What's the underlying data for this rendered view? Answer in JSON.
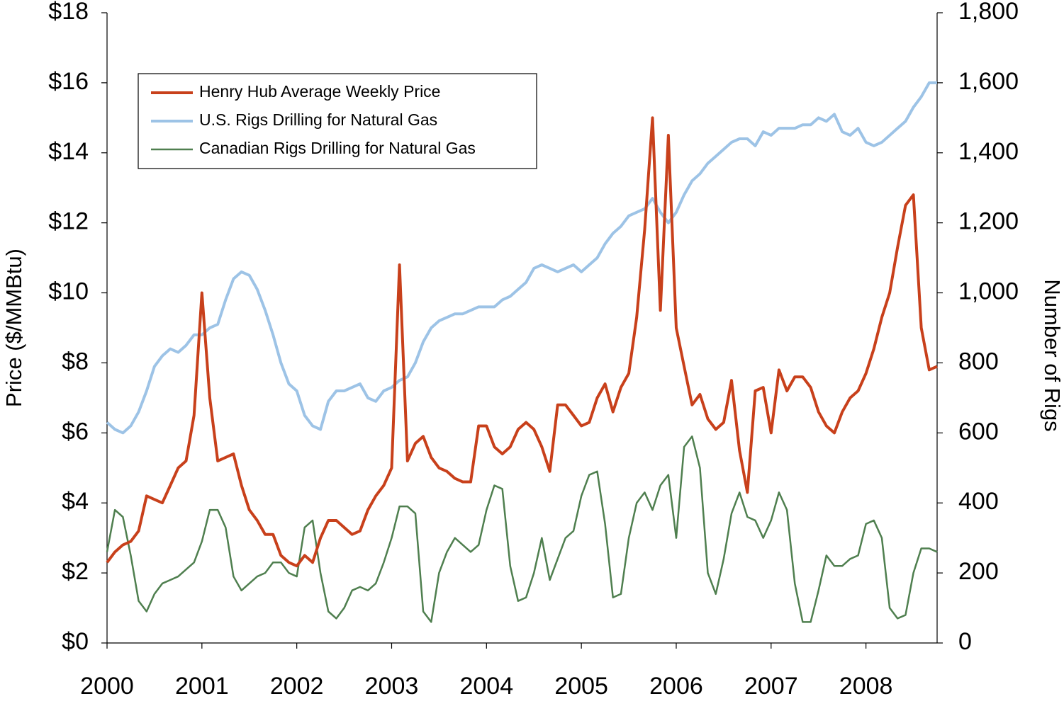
{
  "chart_data": {
    "type": "line",
    "y_label": "Price ($/MMBtu)",
    "y2_label": "Number of Rigs",
    "xlim": [
      2000,
      2008.75
    ],
    "xticks": [
      2000,
      2001,
      2002,
      2003,
      2004,
      2005,
      2006,
      2007,
      2008
    ],
    "ylim": [
      0,
      18
    ],
    "yticks": [
      {
        "value": 0,
        "label": "$0"
      },
      {
        "value": 2,
        "label": "$2"
      },
      {
        "value": 4,
        "label": "$4"
      },
      {
        "value": 6,
        "label": "$6"
      },
      {
        "value": 8,
        "label": "$8"
      },
      {
        "value": 10,
        "label": "$10"
      },
      {
        "value": 12,
        "label": "$12"
      },
      {
        "value": 14,
        "label": "$14"
      },
      {
        "value": 16,
        "label": "$16"
      },
      {
        "value": 18,
        "label": "$18"
      }
    ],
    "y2lim": [
      0,
      1800
    ],
    "y2ticks": [
      0,
      200,
      400,
      600,
      800,
      {
        "value": 1000,
        "label": "1,000"
      },
      {
        "value": 1200,
        "label": "1,200"
      },
      {
        "value": 1400,
        "label": "1,400"
      },
      {
        "value": 1600,
        "label": "1,600"
      },
      {
        "value": 1800,
        "label": "1,800"
      }
    ],
    "legend": "upper left",
    "x": [
      2000,
      2000.083,
      2000.167,
      2000.25,
      2000.333,
      2000.417,
      2000.5,
      2000.583,
      2000.667,
      2000.75,
      2000.833,
      2000.917,
      2001,
      2001.083,
      2001.167,
      2001.25,
      2001.333,
      2001.417,
      2001.5,
      2001.583,
      2001.667,
      2001.75,
      2001.833,
      2001.917,
      2002,
      2002.083,
      2002.167,
      2002.25,
      2002.333,
      2002.417,
      2002.5,
      2002.583,
      2002.667,
      2002.75,
      2002.833,
      2002.917,
      2003,
      2003.083,
      2003.167,
      2003.25,
      2003.333,
      2003.417,
      2003.5,
      2003.583,
      2003.667,
      2003.75,
      2003.833,
      2003.917,
      2004,
      2004.083,
      2004.167,
      2004.25,
      2004.333,
      2004.417,
      2004.5,
      2004.583,
      2004.667,
      2004.75,
      2004.833,
      2004.917,
      2005,
      2005.083,
      2005.167,
      2005.25,
      2005.333,
      2005.417,
      2005.5,
      2005.583,
      2005.667,
      2005.75,
      2005.833,
      2005.917,
      2006,
      2006.083,
      2006.167,
      2006.25,
      2006.333,
      2006.417,
      2006.5,
      2006.583,
      2006.667,
      2006.75,
      2006.833,
      2006.917,
      2007,
      2007.083,
      2007.167,
      2007.25,
      2007.333,
      2007.417,
      2007.5,
      2007.583,
      2007.667,
      2007.75,
      2007.833,
      2007.917,
      2008,
      2008.083,
      2008.167,
      2008.25,
      2008.333,
      2008.417,
      2008.5,
      2008.583,
      2008.667,
      2008.75
    ],
    "series": [
      {
        "name": "Henry Hub Average Weekly Price",
        "color": "#c8401b",
        "width": 4,
        "axis": "y",
        "values": [
          2.3,
          2.6,
          2.8,
          2.9,
          3.2,
          4.2,
          4.1,
          4.0,
          4.5,
          5.0,
          5.2,
          6.5,
          10.0,
          7.0,
          5.2,
          5.3,
          5.4,
          4.5,
          3.8,
          3.5,
          3.1,
          3.1,
          2.5,
          2.3,
          2.2,
          2.5,
          2.3,
          3.0,
          3.5,
          3.5,
          3.3,
          3.1,
          3.2,
          3.8,
          4.2,
          4.5,
          5.0,
          10.8,
          5.2,
          5.7,
          5.9,
          5.3,
          5.0,
          4.9,
          4.7,
          4.6,
          4.6,
          6.2,
          6.2,
          5.6,
          5.4,
          5.6,
          6.1,
          6.3,
          6.1,
          5.6,
          4.9,
          6.8,
          6.8,
          6.5,
          6.2,
          6.3,
          7.0,
          7.4,
          6.6,
          7.3,
          7.7,
          9.3,
          11.8,
          15.0,
          9.5,
          14.5,
          9.0,
          7.9,
          6.8,
          7.1,
          6.4,
          6.1,
          6.3,
          7.5,
          5.5,
          4.3,
          7.2,
          7.3,
          6.0,
          7.8,
          7.2,
          7.6,
          7.6,
          7.3,
          6.6,
          6.2,
          6.0,
          6.6,
          7.0,
          7.2,
          7.7,
          8.4,
          9.3,
          10.0,
          11.3,
          12.5,
          12.8,
          9.0,
          7.8,
          7.9
        ]
      },
      {
        "name": "U.S. Rigs Drilling for Natural Gas",
        "color": "#9dc3e6",
        "width": 4,
        "axis": "y2",
        "values": [
          630,
          610,
          600,
          620,
          660,
          720,
          790,
          820,
          840,
          830,
          850,
          880,
          880,
          900,
          910,
          980,
          1040,
          1060,
          1050,
          1010,
          950,
          880,
          800,
          740,
          720,
          650,
          620,
          610,
          690,
          720,
          720,
          730,
          740,
          700,
          690,
          720,
          730,
          750,
          760,
          800,
          860,
          900,
          920,
          930,
          940,
          940,
          950,
          960,
          960,
          960,
          980,
          990,
          1010,
          1030,
          1070,
          1080,
          1070,
          1060,
          1070,
          1080,
          1060,
          1080,
          1100,
          1140,
          1170,
          1190,
          1220,
          1230,
          1240,
          1270,
          1230,
          1200,
          1230,
          1280,
          1320,
          1340,
          1370,
          1390,
          1410,
          1430,
          1440,
          1440,
          1420,
          1460,
          1450,
          1470,
          1470,
          1470,
          1480,
          1480,
          1500,
          1490,
          1510,
          1460,
          1450,
          1470,
          1430,
          1420,
          1430,
          1450,
          1470,
          1490,
          1530,
          1560,
          1600,
          1600
        ]
      },
      {
        "name": "Canadian Rigs Drilling for Natural Gas",
        "color": "#4f7f4f",
        "width": 2.5,
        "axis": "y2",
        "values": [
          260,
          380,
          360,
          250,
          120,
          90,
          140,
          170,
          180,
          190,
          210,
          230,
          290,
          380,
          380,
          330,
          190,
          150,
          170,
          190,
          200,
          230,
          230,
          200,
          190,
          330,
          350,
          200,
          90,
          70,
          100,
          150,
          160,
          150,
          170,
          230,
          300,
          390,
          390,
          370,
          90,
          60,
          200,
          260,
          300,
          280,
          260,
          280,
          380,
          450,
          440,
          220,
          120,
          130,
          200,
          300,
          180,
          240,
          300,
          320,
          420,
          480,
          490,
          340,
          130,
          140,
          300,
          400,
          430,
          380,
          450,
          480,
          300,
          560,
          590,
          500,
          200,
          140,
          240,
          370,
          430,
          360,
          350,
          300,
          350,
          430,
          380,
          170,
          60,
          60,
          150,
          250,
          220,
          220,
          240,
          250,
          340,
          350,
          300,
          100,
          70,
          80,
          200,
          270,
          270,
          260
        ]
      }
    ]
  }
}
